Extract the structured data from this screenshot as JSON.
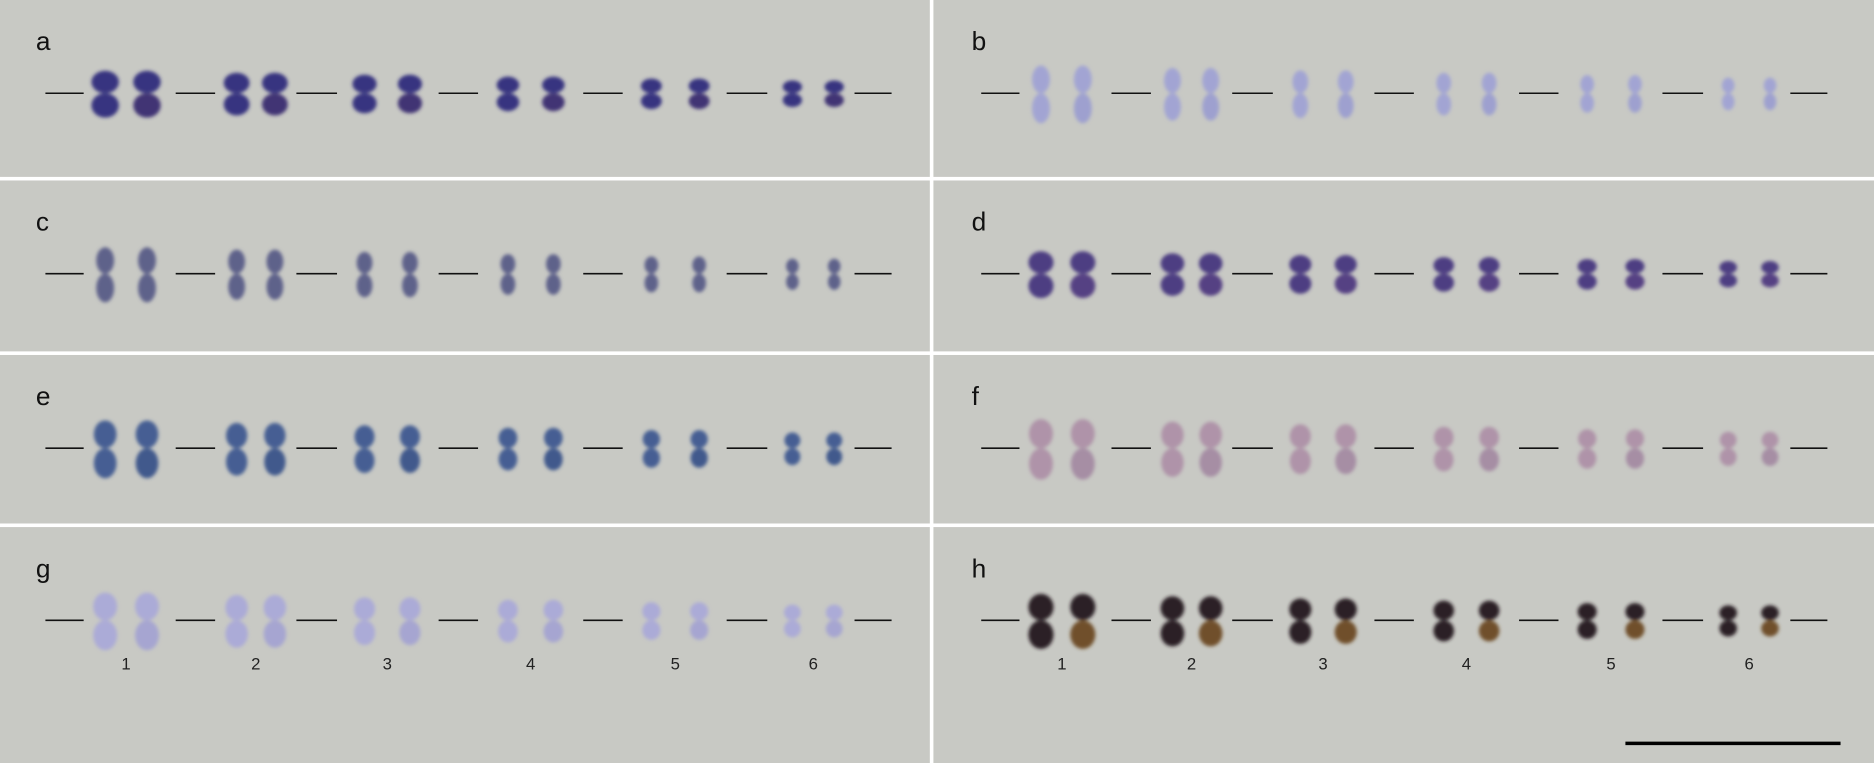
{
  "panels": [
    {
      "label": "a"
    },
    {
      "label": "b"
    },
    {
      "label": "c"
    },
    {
      "label": "d"
    },
    {
      "label": "e"
    },
    {
      "label": "f"
    },
    {
      "label": "g"
    },
    {
      "label": "h"
    }
  ],
  "chromosome_numbers": [
    "1",
    "2",
    "3",
    "4",
    "5",
    "6"
  ]
}
